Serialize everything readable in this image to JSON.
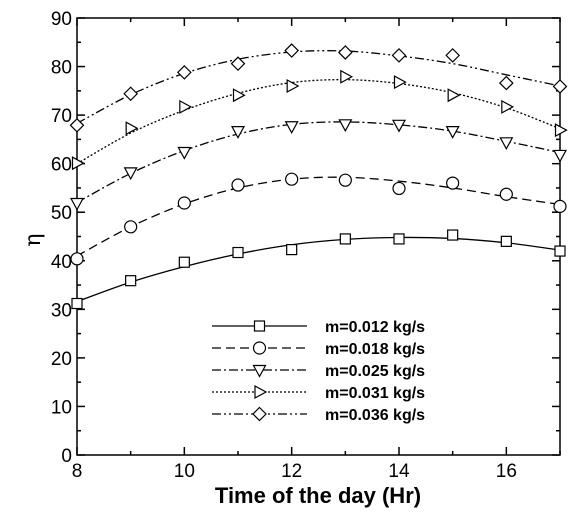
{
  "chart_data": {
    "type": "line",
    "title": "",
    "xlabel": "Time of the day (Hr)",
    "ylabel": "η",
    "xlim": [
      8,
      17
    ],
    "ylim": [
      0,
      90
    ],
    "xticks": [
      8,
      10,
      12,
      14,
      16
    ],
    "yticks": [
      0,
      10,
      20,
      30,
      40,
      50,
      60,
      70,
      80,
      90
    ],
    "grid": false,
    "legend_position": "bottom-center",
    "series": [
      {
        "name": "m=0.012 kg/s",
        "marker": "square",
        "dash": "solid",
        "points": [
          [
            8,
            31.2
          ],
          [
            9,
            35.9
          ],
          [
            10,
            39.7
          ],
          [
            11,
            41.7
          ],
          [
            12,
            42.3
          ],
          [
            13,
            44.5
          ],
          [
            14,
            44.5
          ],
          [
            15,
            45.3
          ],
          [
            16,
            44.0
          ],
          [
            17,
            42.0
          ]
        ],
        "fit": [
          [
            8,
            31.6
          ],
          [
            9,
            35.6
          ],
          [
            10,
            38.8
          ],
          [
            11,
            41.4
          ],
          [
            12,
            43.3
          ],
          [
            13,
            44.4
          ],
          [
            14,
            44.8
          ],
          [
            15,
            44.6
          ],
          [
            16,
            43.7
          ],
          [
            17,
            42.2
          ]
        ]
      },
      {
        "name": "m=0.018 kg/s",
        "marker": "circle",
        "dash": "dashed",
        "points": [
          [
            8,
            40.4
          ],
          [
            9,
            47.0
          ],
          [
            10,
            51.9
          ],
          [
            11,
            55.6
          ],
          [
            12,
            56.8
          ],
          [
            13,
            56.6
          ],
          [
            14,
            54.9
          ],
          [
            15,
            56.0
          ],
          [
            16,
            53.7
          ],
          [
            17,
            51.2
          ]
        ],
        "fit": [
          [
            8,
            41.0
          ],
          [
            9,
            47.0
          ],
          [
            10,
            51.7
          ],
          [
            11,
            55.0
          ],
          [
            12,
            56.8
          ],
          [
            13,
            57.2
          ],
          [
            14,
            56.4
          ],
          [
            15,
            55.0
          ],
          [
            16,
            53.2
          ],
          [
            17,
            51.6
          ]
        ]
      },
      {
        "name": "m=0.025 kg/s",
        "marker": "triangle-down",
        "dash": "dashdot",
        "points": [
          [
            8,
            51.9
          ],
          [
            9,
            58.2
          ],
          [
            10,
            62.4
          ],
          [
            11,
            66.7
          ],
          [
            12,
            67.7
          ],
          [
            13,
            68.1
          ],
          [
            14,
            68.0
          ],
          [
            15,
            66.7
          ],
          [
            16,
            64.4
          ],
          [
            17,
            61.8
          ]
        ],
        "fit": [
          [
            8,
            52.0
          ],
          [
            9,
            58.0
          ],
          [
            10,
            62.7
          ],
          [
            11,
            66.1
          ],
          [
            12,
            68.1
          ],
          [
            13,
            68.6
          ],
          [
            14,
            68.0
          ],
          [
            15,
            66.7
          ],
          [
            16,
            64.6
          ],
          [
            17,
            62.3
          ]
        ]
      },
      {
        "name": "m=0.031 kg/s",
        "marker": "triangle-right",
        "dash": "dotted",
        "points": [
          [
            8,
            60.1
          ],
          [
            9,
            67.3
          ],
          [
            10,
            71.7
          ],
          [
            11,
            74.1
          ],
          [
            12,
            76.0
          ],
          [
            13,
            77.9
          ],
          [
            14,
            76.8
          ],
          [
            15,
            74.1
          ],
          [
            16,
            71.7
          ],
          [
            17,
            66.9
          ]
        ],
        "fit": [
          [
            8,
            60.0
          ],
          [
            9,
            66.3
          ],
          [
            10,
            71.0
          ],
          [
            11,
            74.5
          ],
          [
            12,
            76.7
          ],
          [
            13,
            77.3
          ],
          [
            14,
            76.5
          ],
          [
            15,
            74.6
          ],
          [
            16,
            71.5
          ],
          [
            17,
            67.2
          ]
        ]
      },
      {
        "name": "m=0.036 kg/s",
        "marker": "diamond",
        "dash": "dashdotdot",
        "points": [
          [
            8,
            67.9
          ],
          [
            9,
            74.4
          ],
          [
            10,
            78.8
          ],
          [
            11,
            80.6
          ],
          [
            12,
            83.3
          ],
          [
            13,
            82.9
          ],
          [
            14,
            82.3
          ],
          [
            15,
            82.3
          ],
          [
            16,
            76.6
          ],
          [
            17,
            75.9
          ]
        ],
        "fit": [
          [
            8,
            68.3
          ],
          [
            9,
            74.2
          ],
          [
            10,
            78.6
          ],
          [
            11,
            81.5
          ],
          [
            12,
            83.0
          ],
          [
            13,
            83.2
          ],
          [
            14,
            82.2
          ],
          [
            15,
            80.6
          ],
          [
            16,
            78.3
          ],
          [
            17,
            76.0
          ]
        ]
      }
    ]
  }
}
